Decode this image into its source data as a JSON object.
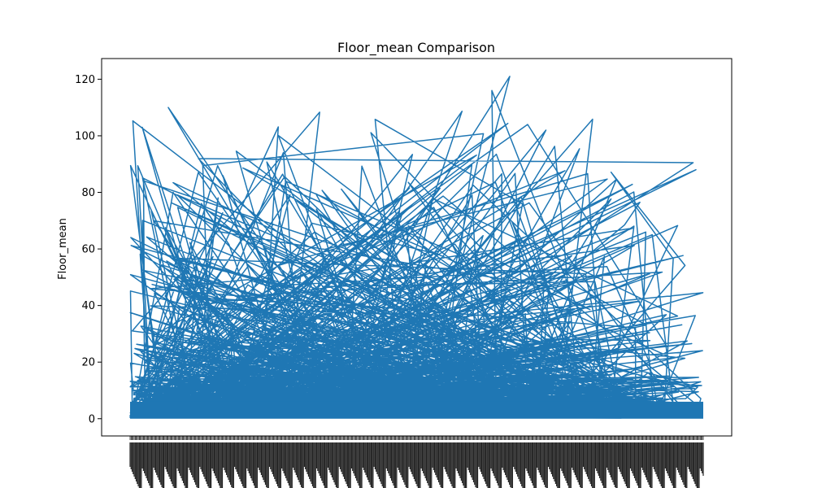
{
  "chart_data": {
    "type": "line",
    "title": "Floor_mean Comparison",
    "xlabel": "",
    "ylabel": "Floor_mean",
    "ylim": [
      -6.1,
      127.3
    ],
    "y_ticks": [
      0,
      20,
      40,
      60,
      80,
      100,
      120
    ],
    "grid": false,
    "legend": "none",
    "line_color": "#1f77b4",
    "x_category_count": 560,
    "x_tick_labels_note_legible": false,
    "series": [
      {
        "values": [
          3,
          28,
          25,
          86,
          2,
          90,
          5,
          102,
          8,
          2,
          104,
          96,
          4,
          92,
          1,
          90,
          6,
          110,
          9,
          3,
          20,
          4,
          12,
          30,
          2,
          14,
          5,
          89,
          3,
          18,
          7,
          84,
          2,
          10,
          6,
          70,
          12,
          4,
          8,
          91,
          3,
          15,
          9,
          96,
          5,
          11,
          4,
          90,
          60,
          8,
          3,
          19,
          6,
          22,
          2,
          12,
          7,
          14,
          3,
          35,
          9,
          20,
          4,
          15,
          6,
          49,
          3,
          10,
          8,
          12,
          5,
          18,
          2,
          9,
          116,
          4,
          3,
          121,
          6,
          67,
          10,
          5,
          14,
          104,
          3,
          8,
          6,
          79,
          2,
          12,
          5,
          9,
          3,
          89,
          4,
          88,
          7,
          15,
          3,
          55,
          2,
          71,
          9,
          5,
          14,
          3,
          90,
          6,
          90,
          4,
          12,
          8,
          49,
          3,
          88,
          5,
          11,
          2,
          27,
          6,
          14,
          3,
          9,
          4,
          46,
          7,
          12,
          3,
          20,
          5,
          30,
          2,
          15,
          4,
          10,
          1
        ]
      }
    ]
  }
}
